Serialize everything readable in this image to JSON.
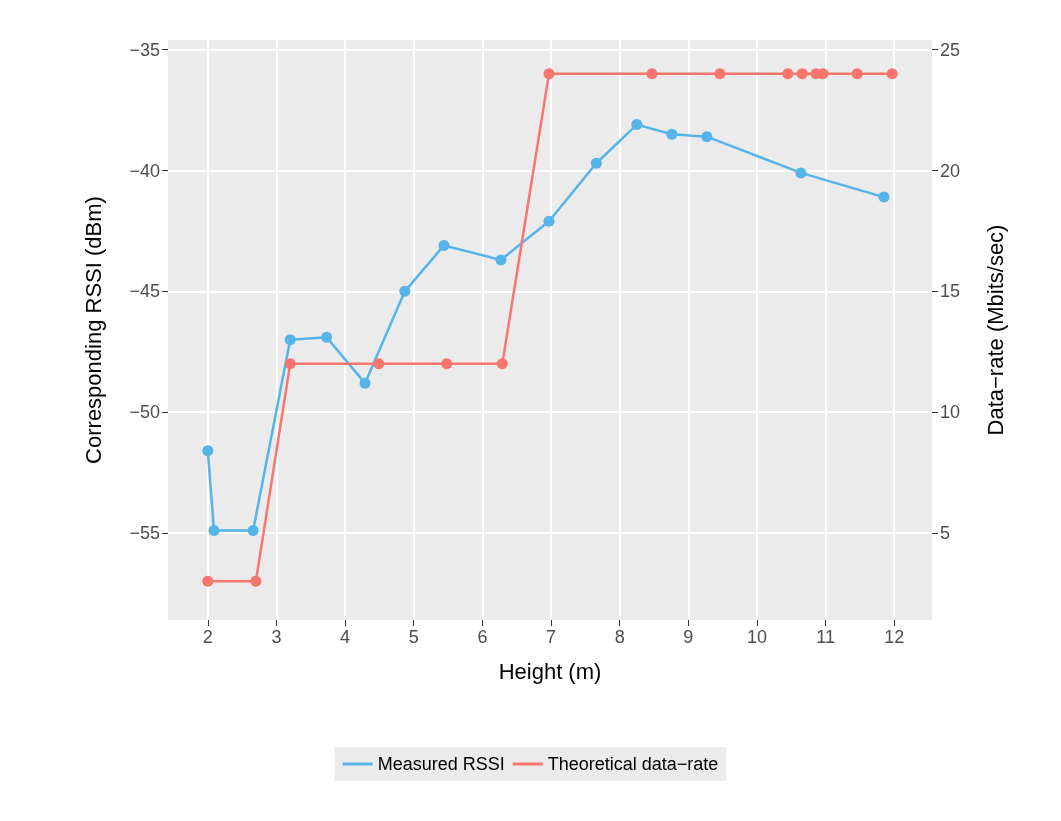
{
  "chart_data": {
    "type": "line",
    "xlabel": "Height (m)",
    "ylabel": "Corresponding RSSI (dBm)",
    "y2label": "Data−rate (Mbits/sec)",
    "xlim": [
      1.42,
      12.55
    ],
    "xticks": [
      2,
      3,
      4,
      5,
      6,
      7,
      8,
      9,
      10,
      11,
      12
    ],
    "ylim": [
      -58.6,
      -34.6
    ],
    "yticks": [
      {
        "value": -55,
        "label": "−55"
      },
      {
        "value": -50,
        "label": "−50"
      },
      {
        "value": -45,
        "label": "−45"
      },
      {
        "value": -40,
        "label": "−40"
      },
      {
        "value": -35,
        "label": "−35"
      }
    ],
    "y2lim": [
      1.4,
      25.4
    ],
    "y2ticks": [
      5,
      10,
      15,
      20,
      25
    ],
    "grid": true,
    "legend": "bottom",
    "marker": "circle",
    "line_style": "solid",
    "series": [
      {
        "name": "Measured RSSI",
        "color": "#56b4e9",
        "x": [
          2.0,
          2.09,
          2.66,
          3.2,
          3.73,
          4.29,
          4.87,
          5.44,
          6.27,
          6.97,
          7.66,
          8.25,
          8.76,
          9.27,
          10.64,
          11.85
        ],
        "values": [
          -51.6,
          -54.9,
          -54.9,
          -47.0,
          -46.9,
          -48.8,
          -45.0,
          -43.1,
          -43.7,
          -42.1,
          -39.7,
          -38.1,
          -38.5,
          -38.6,
          -40.1,
          -41.1
        ]
      },
      {
        "name": "Theoretical data−rate",
        "color": "#f8766d",
        "axis": "y2",
        "x": [
          2.0,
          2.7,
          3.2,
          4.49,
          5.48,
          6.29,
          6.97,
          8.47,
          9.46,
          10.45,
          10.66,
          10.86,
          10.96,
          11.46,
          11.97
        ],
        "values": [
          3,
          3,
          12,
          12,
          12,
          12,
          24,
          24,
          24,
          24,
          24,
          24,
          24,
          24,
          24
        ]
      }
    ]
  }
}
